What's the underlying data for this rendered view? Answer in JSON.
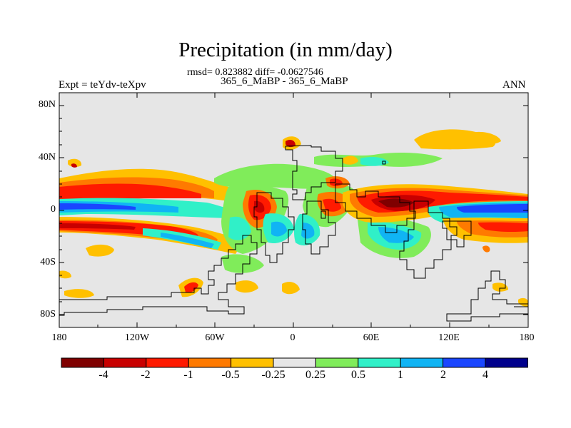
{
  "figure": {
    "title": "Precipitation (in mm/day)",
    "stats_line": "rmsd= 0.823882 diff= -0.0627546",
    "case_line": "365_6_MaBP - 365_6_MaBP",
    "experiment_label": "Expt = teYdv-teXpv",
    "season_label": "ANN"
  },
  "axes": {
    "y_ticks": [
      "80N",
      "40N",
      "0",
      "40S",
      "80S"
    ],
    "x_ticks": [
      "180",
      "120W",
      "60W",
      "0",
      "60E",
      "120E",
      "180"
    ]
  },
  "colorbar": {
    "labels": [
      "-4",
      "-2",
      "-1",
      "-0.5",
      "-0.25",
      "0.25",
      "0.5",
      "1",
      "2",
      "4"
    ],
    "colors": [
      "#7f0000",
      "#c80000",
      "#ff1a00",
      "#ff7a00",
      "#ffc000",
      "#e6e6e6",
      "#80ec5a",
      "#30f0c8",
      "#10b4f4",
      "#1a46ff",
      "#00008c"
    ]
  }
}
